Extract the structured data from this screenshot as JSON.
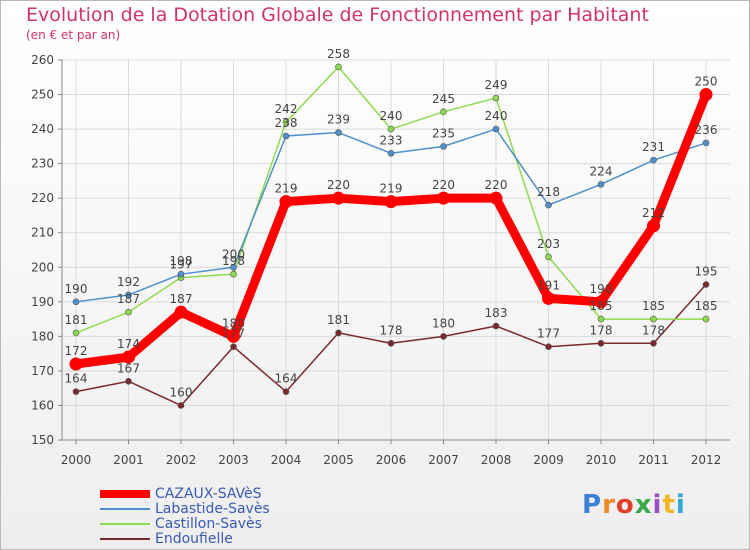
{
  "title": "Evolution de la Dotation Globale de Fonctionnement par Habitant",
  "subtitle": "(en € et par an)",
  "logo": "Proxiti",
  "chart_data": {
    "type": "line",
    "title": "Evolution de la Dotation Globale de Fonctionnement par Habitant",
    "ylabel": "(en € et par an)",
    "xlabel": "",
    "x": [
      "2000",
      "2001",
      "2002",
      "2003",
      "2004",
      "2005",
      "2006",
      "2007",
      "2008",
      "2009",
      "2010",
      "2011",
      "2012"
    ],
    "ylim": [
      150,
      260
    ],
    "yticks": [
      150,
      160,
      170,
      180,
      190,
      200,
      210,
      220,
      230,
      240,
      250,
      260
    ],
    "legend_position": "bottom-left",
    "series": [
      {
        "name": "CAZAUX-SAVèS",
        "color": "#ff0000",
        "values": [
          172,
          174,
          187,
          180,
          219,
          220,
          219,
          220,
          220,
          191,
          190,
          212,
          250
        ]
      },
      {
        "name": "Labastide-Savès",
        "color": "#4f8fcc",
        "values": [
          190,
          192,
          198,
          200,
          238,
          239,
          233,
          235,
          240,
          218,
          224,
          231,
          236
        ]
      },
      {
        "name": "Castillon-Savès",
        "color": "#8edb4f",
        "values": [
          181,
          187,
          197,
          198,
          242,
          258,
          240,
          245,
          249,
          203,
          185,
          185,
          185
        ]
      },
      {
        "name": "Endoufielle",
        "color": "#7a2a2a",
        "values": [
          164,
          167,
          160,
          177,
          164,
          181,
          178,
          180,
          183,
          177,
          178,
          178,
          195
        ]
      }
    ]
  }
}
